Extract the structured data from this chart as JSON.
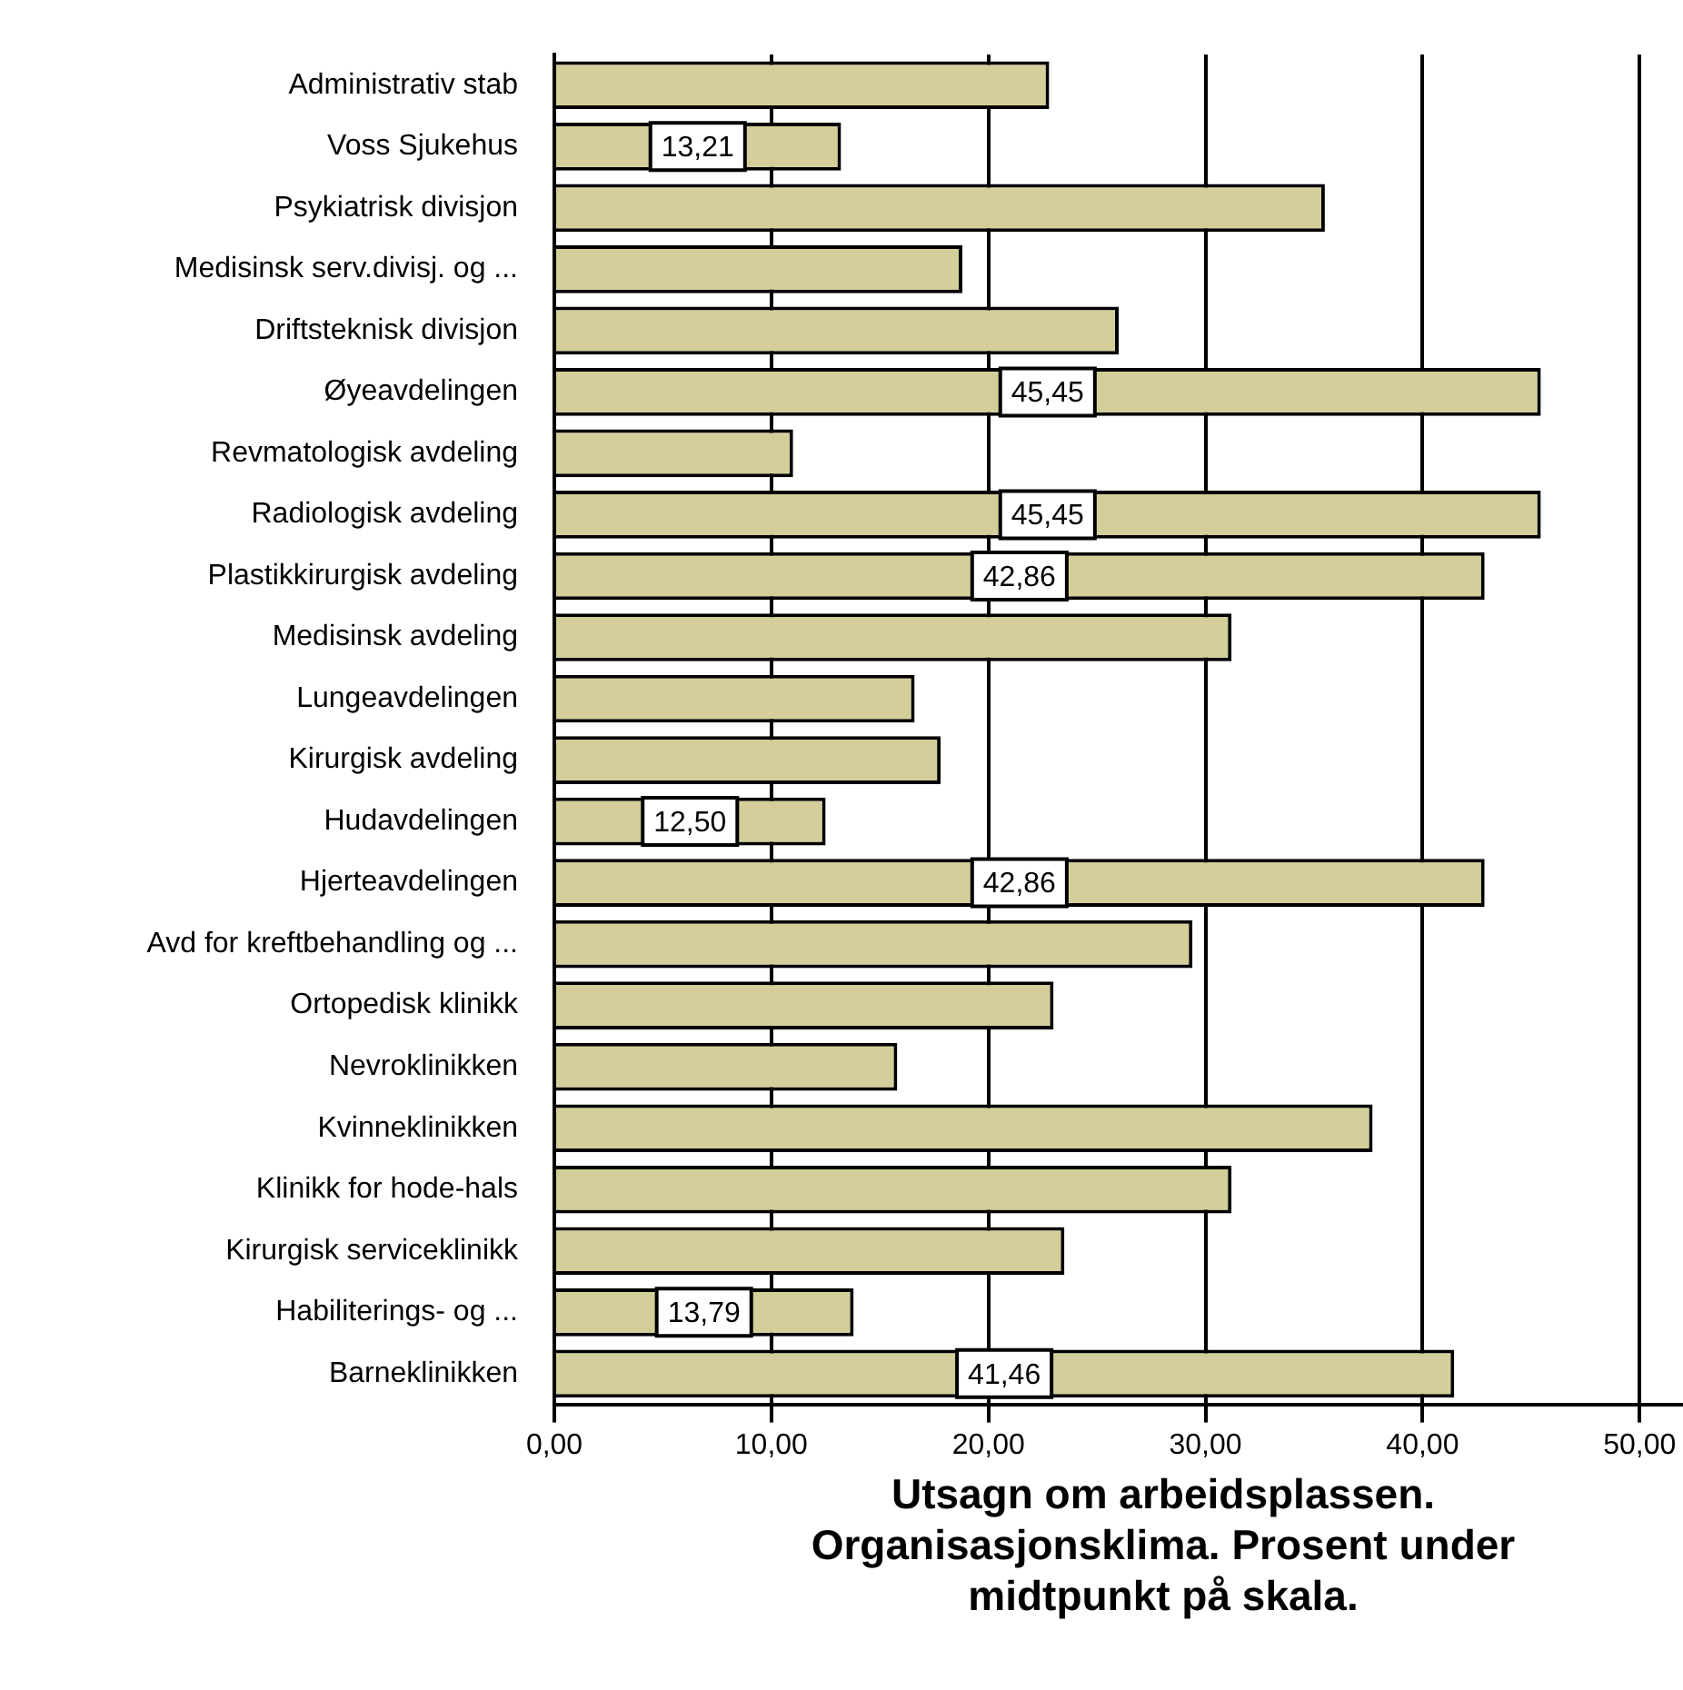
{
  "chart_data": {
    "type": "bar",
    "orientation": "horizontal",
    "xlabel": "Utsagn om arbeidsplassen. Organisasjonsklima. Prosent under midtpunkt på skala.",
    "categories": [
      "Administrativ stab",
      "Voss Sjukehus",
      "Psykiatrisk divisjon",
      "Medisinsk serv.divisj. og ...",
      "Driftsteknisk divisjon",
      "Øyeavdelingen",
      "Revmatologisk avdeling",
      "Radiologisk avdeling",
      "Plastikkirurgisk avdeling",
      "Medisinsk avdeling",
      "Lungeavdelingen",
      "Kirurgisk avdeling",
      "Hudavdelingen",
      "Hjerteavdelingen",
      "Avd for kreftbehandling og ...",
      "Ortopedisk klinikk",
      "Nevroklinikken",
      "Kvinneklinikken",
      "Klinikk for hode-hals",
      "Kirurgisk serviceklinikk",
      "Habiliterings- og ...",
      "Barneklinikken"
    ],
    "values": [
      22.8,
      13.21,
      35.5,
      18.8,
      26.0,
      45.45,
      11.0,
      45.45,
      42.86,
      31.2,
      16.6,
      17.8,
      12.5,
      42.86,
      29.4,
      23.0,
      15.8,
      37.7,
      31.2,
      23.5,
      13.79,
      41.46
    ],
    "value_labels": [
      null,
      "13,21",
      null,
      null,
      null,
      "45,45",
      null,
      "45,45",
      "42,86",
      null,
      null,
      null,
      "12,50",
      "42,86",
      null,
      null,
      null,
      null,
      null,
      null,
      "13,79",
      "41,46"
    ],
    "color": "#d4cf9a",
    "xlim": [
      0,
      52
    ],
    "xticks": [
      {
        "value": 0,
        "label": "0,00"
      },
      {
        "value": 10,
        "label": "10,00"
      },
      {
        "value": 20,
        "label": "20,00"
      },
      {
        "value": 30,
        "label": "30,00"
      },
      {
        "value": 40,
        "label": "40,00"
      },
      {
        "value": 50,
        "label": "50,00"
      }
    ],
    "grid": "x",
    "legend": false
  }
}
